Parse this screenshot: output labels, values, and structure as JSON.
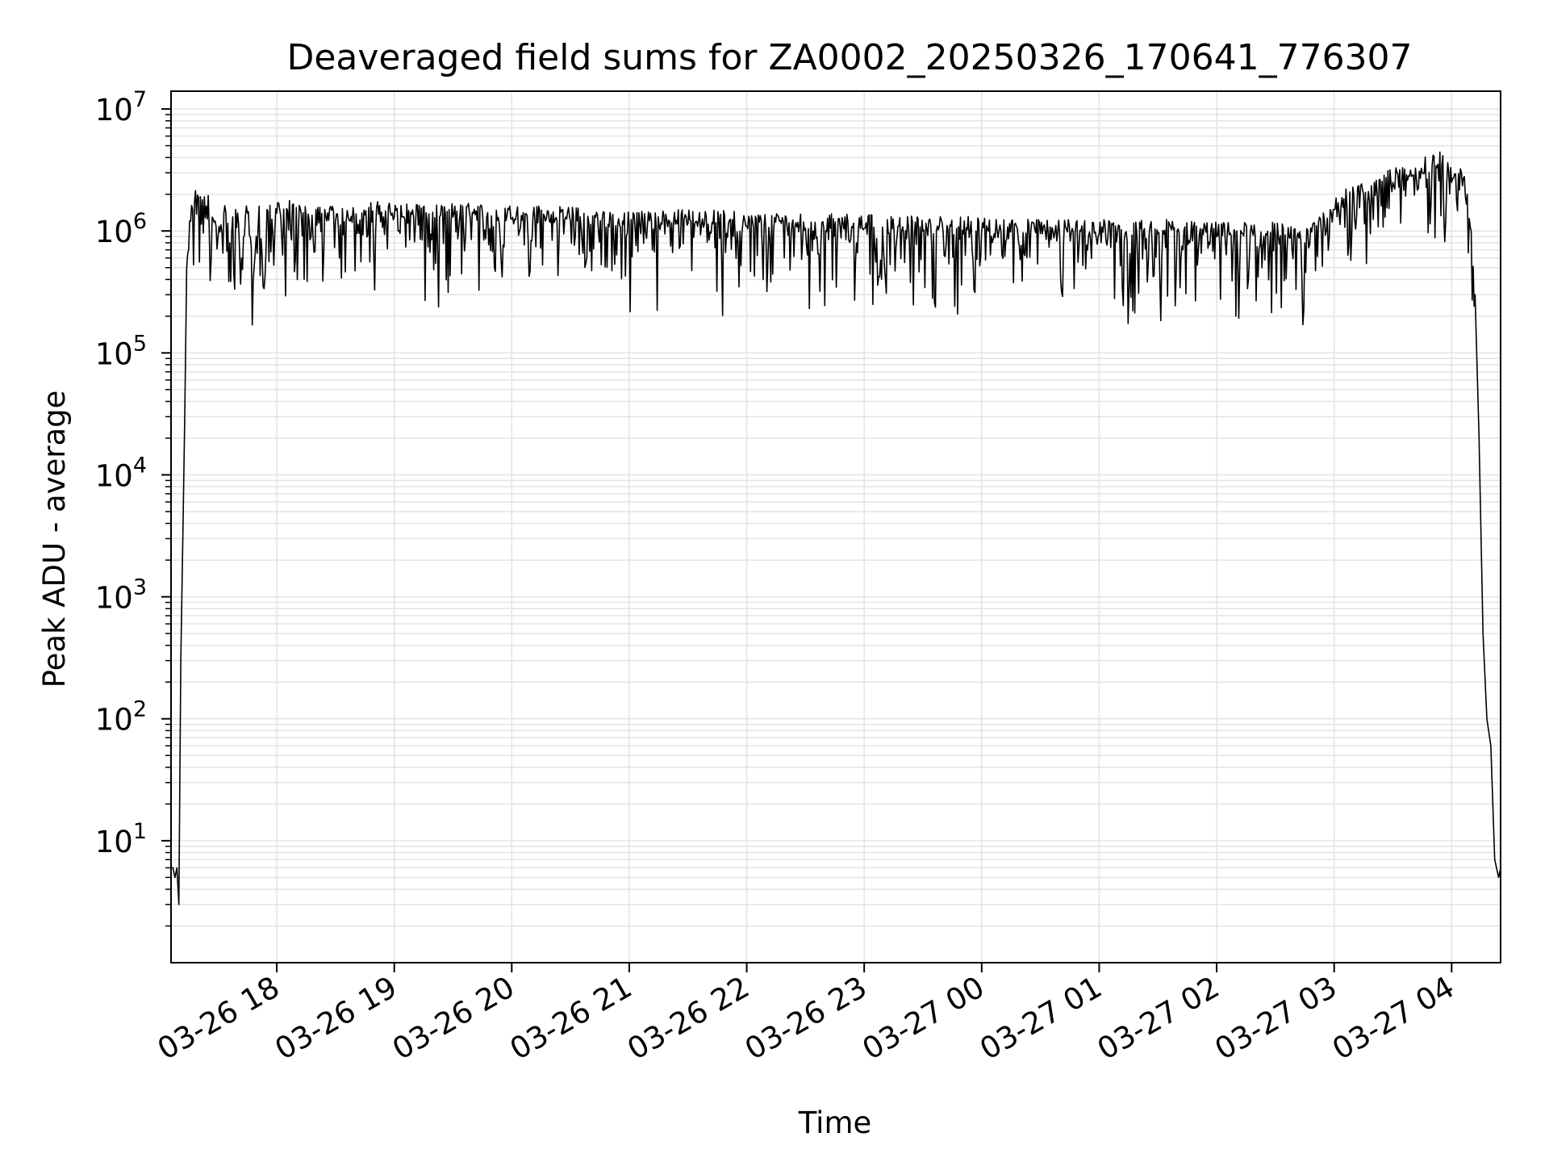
{
  "chart_data": {
    "type": "line",
    "title": "Deaveraged field sums for ZA0002_20250326_170641_776307",
    "xlabel": "Time",
    "ylabel": "Peak ADU - average",
    "y_scale": "log",
    "grid": true,
    "line_color": "#000000",
    "grid_color": "#e3e3e3",
    "xlim": [
      "2025-03-26 17:06",
      "2025-03-27 04:25"
    ],
    "ylim": [
      1,
      14000000
    ],
    "x_ticks": [
      {
        "t": "2025-03-26 18:00",
        "label": "03-26 18"
      },
      {
        "t": "2025-03-26 19:00",
        "label": "03-26 19"
      },
      {
        "t": "2025-03-26 20:00",
        "label": "03-26 20"
      },
      {
        "t": "2025-03-26 21:00",
        "label": "03-26 21"
      },
      {
        "t": "2025-03-26 22:00",
        "label": "03-26 22"
      },
      {
        "t": "2025-03-26 23:00",
        "label": "03-26 23"
      },
      {
        "t": "2025-03-27 00:00",
        "label": "03-27 00"
      },
      {
        "t": "2025-03-27 01:00",
        "label": "03-27 01"
      },
      {
        "t": "2025-03-27 02:00",
        "label": "03-27 02"
      },
      {
        "t": "2025-03-27 03:00",
        "label": "03-27 03"
      },
      {
        "t": "2025-03-27 04:00",
        "label": "03-27 04"
      }
    ],
    "y_ticks": [
      {
        "value": 10,
        "base": "10",
        "exp": "1"
      },
      {
        "value": 100,
        "base": "10",
        "exp": "2"
      },
      {
        "value": 1000,
        "base": "10",
        "exp": "3"
      },
      {
        "value": 10000,
        "base": "10",
        "exp": "4"
      },
      {
        "value": 100000,
        "base": "10",
        "exp": "5"
      },
      {
        "value": 1000000,
        "base": "10",
        "exp": "6"
      },
      {
        "value": 10000000,
        "base": "10",
        "exp": "7"
      }
    ],
    "series": [
      {
        "x": [
          "2025-03-26 17:06",
          "2025-03-26 17:07",
          "2025-03-26 17:08",
          "2025-03-26 17:09",
          "2025-03-26 17:10",
          "2025-03-26 17:11",
          "2025-03-26 17:12",
          "2025-03-26 17:13",
          "2025-03-26 17:14",
          "2025-03-26 17:15",
          "2025-03-26 17:16",
          "2025-03-26 17:17",
          "2025-03-26 17:18",
          "2025-03-26 17:20",
          "2025-03-26 17:22",
          "2025-03-26 17:24",
          "2025-03-26 17:27",
          "2025-03-26 17:30",
          "2025-03-26 17:33",
          "2025-03-26 17:36",
          "2025-03-26 17:39",
          "2025-03-26 17:42",
          "2025-03-26 17:45",
          "2025-03-26 17:48",
          "2025-03-26 17:51",
          "2025-03-26 17:53",
          "2025-03-26 17:55",
          "2025-03-26 18:00",
          "2025-03-26 18:15",
          "2025-03-26 18:30",
          "2025-03-26 18:45",
          "2025-03-26 19:00",
          "2025-03-26 19:30",
          "2025-03-26 20:00",
          "2025-03-26 20:30",
          "2025-03-26 21:00",
          "2025-03-26 21:30",
          "2025-03-26 22:00",
          "2025-03-26 22:30",
          "2025-03-26 23:00",
          "2025-03-26 23:30",
          "2025-03-27 00:00",
          "2025-03-27 00:30",
          "2025-03-27 01:00",
          "2025-03-27 01:30",
          "2025-03-27 02:00",
          "2025-03-27 02:30",
          "2025-03-27 02:45",
          "2025-03-27 03:00",
          "2025-03-27 03:15",
          "2025-03-27 03:30",
          "2025-03-27 03:45",
          "2025-03-27 03:55",
          "2025-03-27 04:00",
          "2025-03-27 04:05",
          "2025-03-27 04:08",
          "2025-03-27 04:10",
          "2025-03-27 04:12",
          "2025-03-27 04:14",
          "2025-03-27 04:16",
          "2025-03-27 04:18",
          "2025-03-27 04:20",
          "2025-03-27 04:22",
          "2025-03-27 04:24",
          "2025-03-27 04:25"
        ],
        "y": [
          6,
          6,
          5,
          6,
          3,
          300,
          3000,
          30000,
          500000,
          700000,
          1200000,
          1500000,
          1700000,
          1900000,
          1800000,
          1600000,
          1300000,
          900000,
          1400000,
          800000,
          1500000,
          600000,
          1400000,
          400000,
          1600000,
          350000,
          1500000,
          1400000,
          1300000,
          1200000,
          1350000,
          1300000,
          1300000,
          1250000,
          1200000,
          1100000,
          1150000,
          1100000,
          1050000,
          1050000,
          1000000,
          1000000,
          950000,
          950000,
          950000,
          900000,
          900000,
          800000,
          1500000,
          2000000,
          2500000,
          3000000,
          3500000,
          2500000,
          3000000,
          2000000,
          1000000,
          300000,
          20000,
          500,
          100,
          60,
          7,
          5,
          6
        ]
      }
    ]
  }
}
